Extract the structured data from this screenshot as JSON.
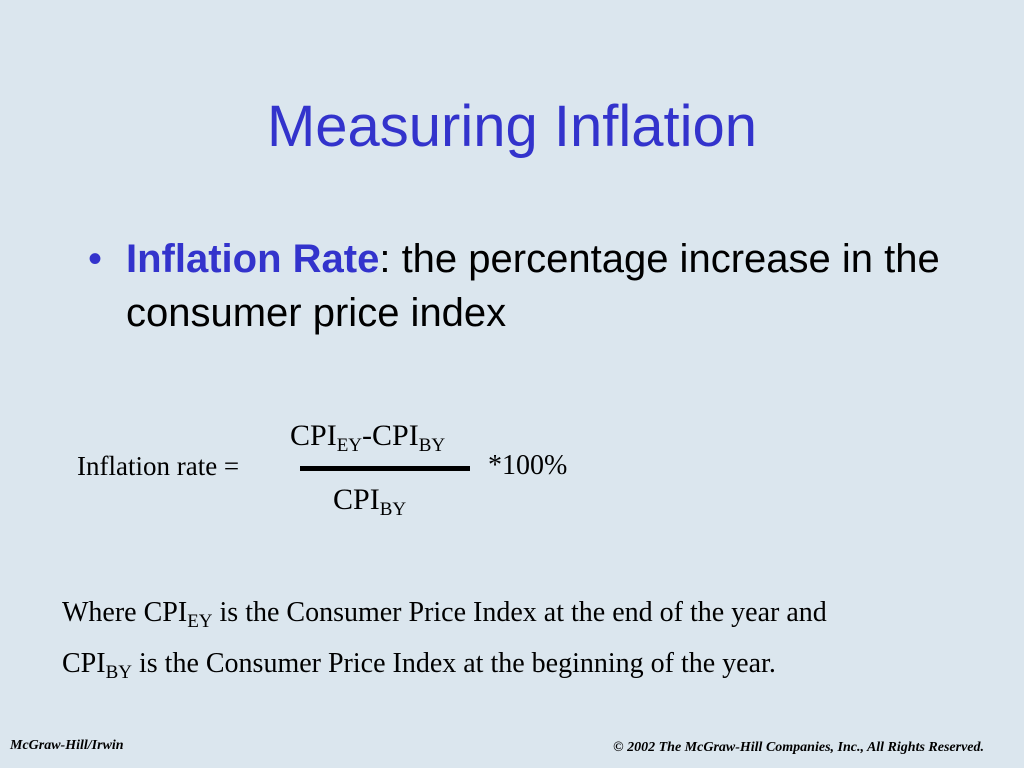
{
  "slide": {
    "title": "Measuring Inflation",
    "bullet": {
      "marker": "•",
      "term": "Inflation Rate",
      "definition": ": the percentage increase in the consumer price index"
    },
    "formula": {
      "label": "Inflation rate =",
      "numerator": {
        "base1": "CPI",
        "sub1": "EY",
        "minus": "-",
        "base2": "CPI",
        "sub2": "BY"
      },
      "denominator": {
        "base": "CPI",
        "sub": "BY"
      },
      "multiplier": "*100%"
    },
    "explanation": {
      "line1_pre": "Where CPI",
      "line1_sub": "EY",
      "line1_post": " is the Consumer Price Index at the end of the year and",
      "line2_pre": "CPI",
      "line2_sub": "BY",
      "line2_post": " is the Consumer Price Index at the beginning of the year."
    }
  },
  "footer": {
    "left": "McGraw-Hill/Irwin",
    "right": "© 2002 The McGraw-Hill Companies, Inc., All Rights Reserved."
  }
}
